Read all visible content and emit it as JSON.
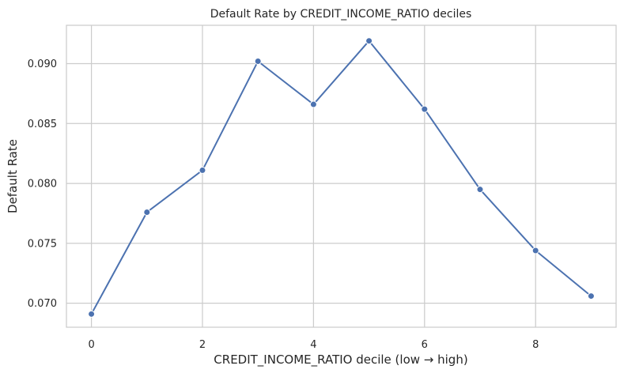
{
  "chart_data": {
    "type": "line",
    "title": "Default Rate by CREDIT_INCOME_RATIO deciles",
    "xlabel": "CREDIT_INCOME_RATIO decile (low → high)",
    "ylabel": "Default Rate",
    "xlim": [
      -0.45,
      9.45
    ],
    "ylim": [
      0.068,
      0.0932
    ],
    "x_ticks": [
      0,
      2,
      4,
      6,
      8
    ],
    "x_tick_labels": [
      "0",
      "2",
      "4",
      "6",
      "8"
    ],
    "y_ticks": [
      0.07,
      0.075,
      0.08,
      0.085,
      0.09
    ],
    "y_tick_labels": [
      "0.070",
      "0.075",
      "0.080",
      "0.085",
      "0.090"
    ],
    "grid": true,
    "series": [
      {
        "color": "#4c72b0",
        "x": [
          0,
          1,
          2,
          3,
          4,
          5,
          6,
          7,
          8,
          9
        ],
        "values": [
          0.0691,
          0.0776,
          0.0811,
          0.0902,
          0.0866,
          0.0919,
          0.0862,
          0.0795,
          0.0744,
          0.0706
        ]
      }
    ]
  },
  "colors": {
    "line": "#4c72b0",
    "grid": "#cccccc",
    "frame": "#cccccc",
    "text": "#262626"
  }
}
